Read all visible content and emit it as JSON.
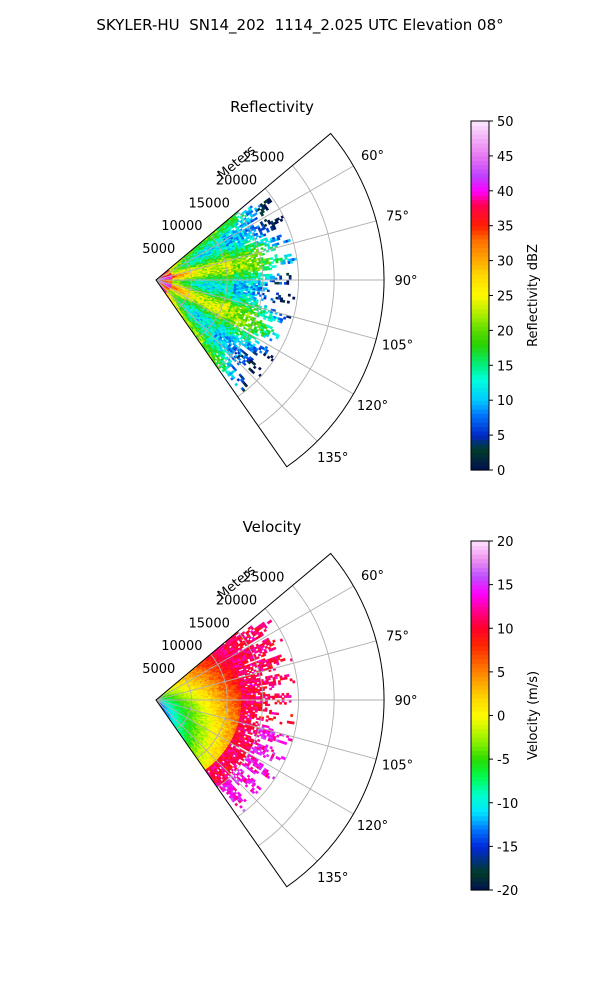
{
  "figure": {
    "title": "SKYLER-HU  SN14_202  1114_2.025 UTC Elevation 08°"
  },
  "chart_data": [
    {
      "type": "heatmap",
      "projection": "polar-sector",
      "title": "Reflectivity",
      "range_label": "Meters",
      "range_ticks": [
        5000,
        10000,
        15000,
        20000,
        25000
      ],
      "range_lim": [
        0,
        32000
      ],
      "azimuth_lim_deg": [
        50,
        145
      ],
      "azimuth_ticks": [
        "60°",
        "75°",
        "90°",
        "105°",
        "120°",
        "135°"
      ],
      "azimuth_tick_values": [
        60,
        75,
        90,
        105,
        120,
        135
      ],
      "colorbar": {
        "label": "Reflectivity dBZ",
        "vmin": 0,
        "vmax": 50,
        "ticks": [
          0,
          5,
          10,
          15,
          20,
          25,
          30,
          35,
          40,
          45,
          50
        ]
      },
      "field_kind": "reflectivity",
      "data_extent_m": 20000,
      "grid": true
    },
    {
      "type": "heatmap",
      "projection": "polar-sector",
      "title": "Velocity",
      "range_label": "Meters",
      "range_ticks": [
        5000,
        10000,
        15000,
        20000,
        25000
      ],
      "range_lim": [
        0,
        32000
      ],
      "azimuth_lim_deg": [
        50,
        145
      ],
      "azimuth_ticks": [
        "60°",
        "75°",
        "90°",
        "105°",
        "120°",
        "135°"
      ],
      "azimuth_tick_values": [
        60,
        75,
        90,
        105,
        120,
        135
      ],
      "colorbar": {
        "label": "Velocity (m/s)",
        "vmin": -20,
        "vmax": 20,
        "ticks": [
          -20,
          -15,
          -10,
          -5,
          0,
          5,
          10,
          15,
          20
        ]
      },
      "field_kind": "velocity",
      "data_extent_m": 20000,
      "grid": true
    }
  ]
}
